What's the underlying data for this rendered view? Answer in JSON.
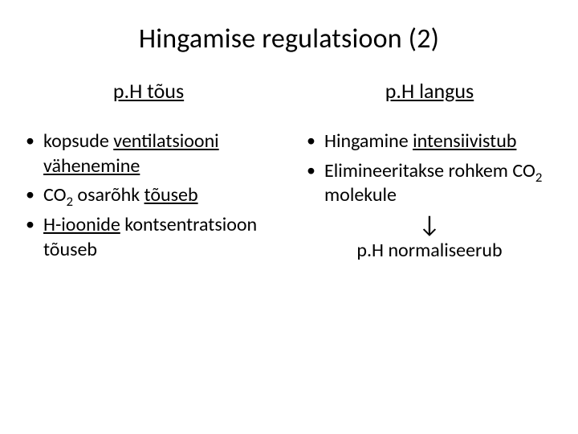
{
  "title": "Hingamise regulatsioon (2)",
  "left": {
    "heading": "p.H tõus",
    "items": [
      {
        "pre": "kopsude ",
        "u": "ventilatsiooni vähenemine",
        "post": ""
      },
      {
        "pre": "CO",
        "sub": "2",
        "mid": " osarõhk  ",
        "u": "tõuseb",
        "post": ""
      },
      {
        "pre": "",
        "u": "H-ioonide",
        "post": " kontsentratsioon tõuseb"
      }
    ]
  },
  "right": {
    "heading": "p.H langus",
    "items": [
      {
        "pre": "Hingamine ",
        "u": "intensiivistub",
        "post": ""
      },
      {
        "pre": "Elimineeritakse rohkem CO",
        "sub": "2",
        "post": " molekule"
      }
    ],
    "arrow": "↓",
    "result": "p.H normaliseerub"
  },
  "style": {
    "background": "#ffffff",
    "text_color": "#000000",
    "title_fontsize": 34,
    "heading_fontsize": 26,
    "body_fontsize": 24,
    "font_family": "Calibri"
  }
}
